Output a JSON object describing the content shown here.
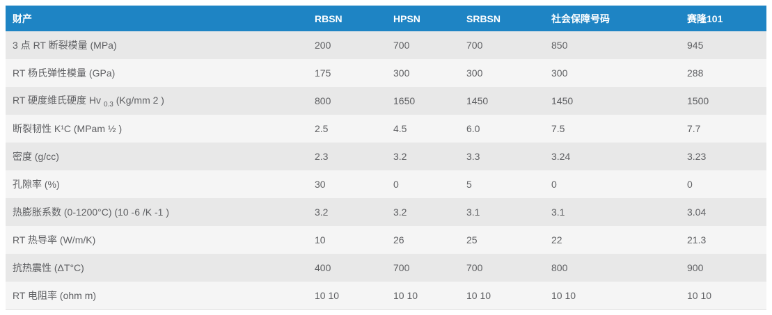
{
  "table": {
    "header": {
      "property_label": "财产",
      "columns": [
        "RBSN",
        "HPSN",
        "SRBSN",
        "社会保障号码",
        "赛隆101"
      ]
    },
    "rows": [
      {
        "property": [
          {
            "text": "3 点 RT 断裂模量 (MPa)"
          }
        ],
        "values": [
          "200",
          "700",
          "700",
          "850",
          "945"
        ]
      },
      {
        "property": [
          {
            "text": "RT 杨氏弹性模量 (GPa)"
          }
        ],
        "values": [
          "175",
          "300",
          "300",
          "300",
          "288"
        ]
      },
      {
        "property": [
          {
            "text": "RT 硬度维氏硬度 Hv "
          },
          {
            "text": "0.3",
            "style": "sub"
          },
          {
            "text": " (Kg/mm 2 )"
          }
        ],
        "values": [
          "800",
          "1650",
          "1450",
          "1450",
          "1500"
        ]
      },
      {
        "property": [
          {
            "text": "断裂韧性 K¹C (MPam ½ )"
          }
        ],
        "values": [
          "2.5",
          "4.5",
          "6.0",
          "7.5",
          "7.7"
        ]
      },
      {
        "property": [
          {
            "text": "密度 (g/cc)"
          }
        ],
        "values": [
          "2.3",
          "3.2",
          "3.3",
          "3.24",
          "3.23"
        ]
      },
      {
        "property": [
          {
            "text": "孔隙率 (%)"
          }
        ],
        "values": [
          "30",
          "0",
          "5",
          "0",
          "0"
        ]
      },
      {
        "property": [
          {
            "text": "热膨胀系数 (0-1200°C) (10 -6 /K -1 )"
          }
        ],
        "values": [
          "3.2",
          "3.2",
          "3.1",
          "3.1",
          "3.04"
        ]
      },
      {
        "property": [
          {
            "text": "RT 热导率 (W/m/K)"
          }
        ],
        "values": [
          "10",
          "26",
          "25",
          "22",
          "21.3"
        ]
      },
      {
        "property": [
          {
            "text": "抗热震性 (ΔT°C)"
          }
        ],
        "values": [
          "400",
          "700",
          "700",
          "800",
          "900"
        ]
      },
      {
        "property": [
          {
            "text": "RT 电阻率 (ohm m)"
          }
        ],
        "values": [
          "10 10",
          "10 10",
          "10 10",
          "10 10",
          "10 10"
        ]
      }
    ],
    "colors": {
      "header_bg": "#1e84c4",
      "header_text": "#ffffff",
      "row_odd": "#e8e8e8",
      "row_even": "#f5f5f5",
      "body_text": "#5f6063"
    }
  }
}
